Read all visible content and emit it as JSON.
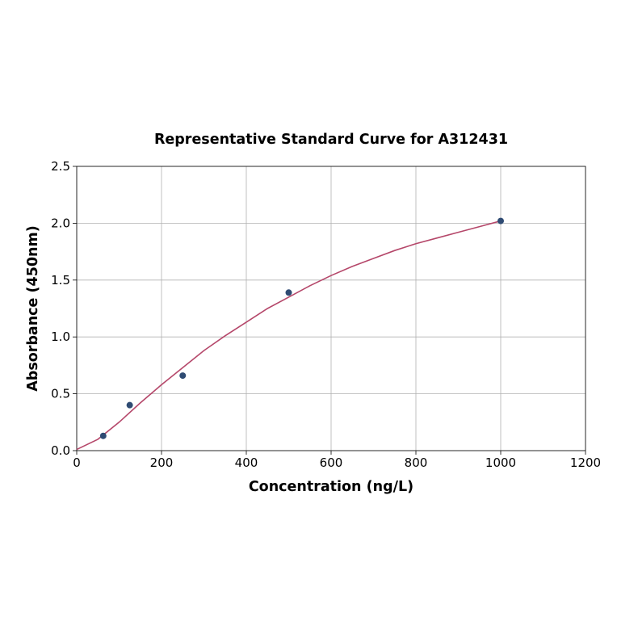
{
  "chart_data": {
    "type": "scatter",
    "title": "Representative Standard Curve for A312431",
    "x_label": "Concentration (ng/L)",
    "y_label": "Absorbance (450nm)",
    "xlim": [
      0,
      1200
    ],
    "xticks": [
      0,
      200,
      400,
      600,
      800,
      1000,
      1200
    ],
    "ylim": [
      0,
      2.5
    ],
    "yticks": [
      {
        "value": 0,
        "label": "0.0"
      },
      0.5,
      {
        "value": 1,
        "label": "1.0"
      },
      1.5,
      {
        "value": 2,
        "label": "2.0"
      },
      2.5
    ],
    "grid": true,
    "series": [
      {
        "type": "scatter",
        "color": "#2f4b73",
        "x": [
          62.5,
          125,
          250,
          500,
          1000
        ],
        "values": [
          0.13,
          0.4,
          0.66,
          1.39,
          2.02
        ]
      },
      {
        "type": "line",
        "color": "#b5476a",
        "x": [
          0,
          50,
          100,
          150,
          200,
          250,
          300,
          350,
          400,
          450,
          500,
          550,
          600,
          650,
          700,
          750,
          800,
          850,
          900,
          950,
          1000
        ],
        "values": [
          0.01,
          0.1,
          0.25,
          0.42,
          0.58,
          0.73,
          0.88,
          1.01,
          1.13,
          1.25,
          1.35,
          1.45,
          1.54,
          1.62,
          1.69,
          1.76,
          1.82,
          1.87,
          1.92,
          1.97,
          2.02
        ]
      }
    ]
  }
}
